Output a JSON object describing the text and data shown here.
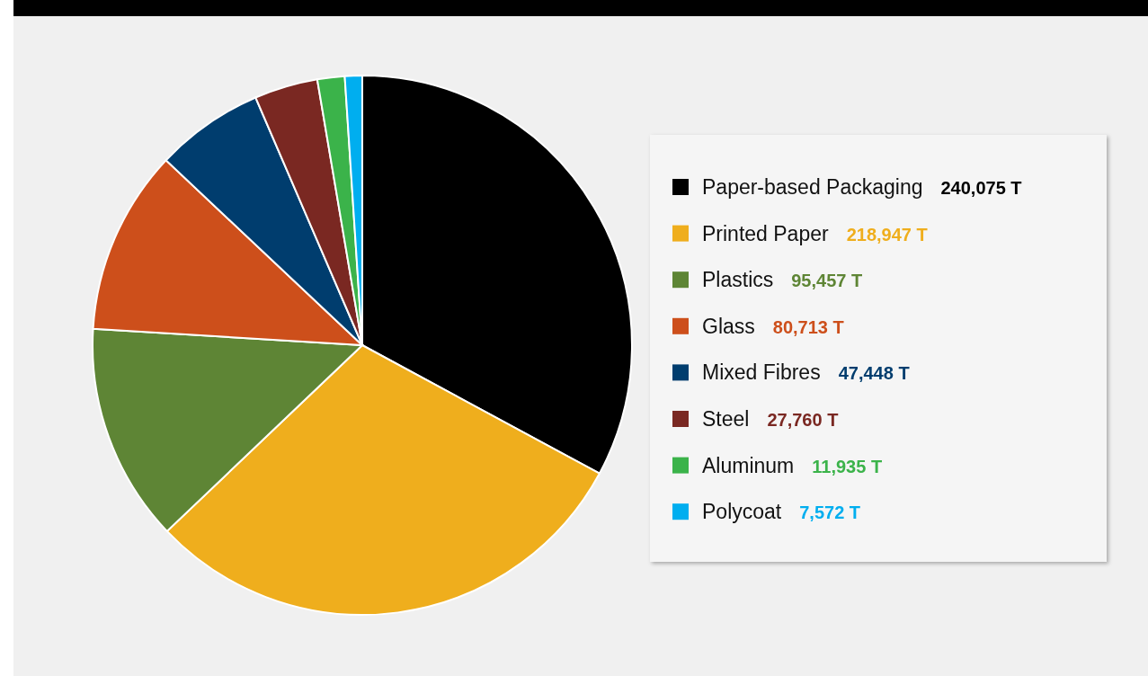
{
  "chart_data": {
    "type": "pie",
    "categories": [
      "Paper-based Packaging",
      "Printed Paper",
      "Plastics",
      "Glass",
      "Mixed Fibres",
      "Steel",
      "Aluminum",
      "Polycoat"
    ],
    "values": [
      240075,
      218947,
      95457,
      80713,
      47448,
      27760,
      11935,
      7572
    ],
    "value_labels": [
      "240,075 T",
      "218,947 T",
      "95,457 T",
      "80,713 T",
      "47,448 T",
      "27,760 T",
      "11,935 T",
      "7,572 T"
    ],
    "colors": [
      "#000000",
      "#efae1d",
      "#5e8535",
      "#cd4f1b",
      "#003d6e",
      "#7a2822",
      "#3bb34a",
      "#00aeef"
    ],
    "legend": "right"
  }
}
